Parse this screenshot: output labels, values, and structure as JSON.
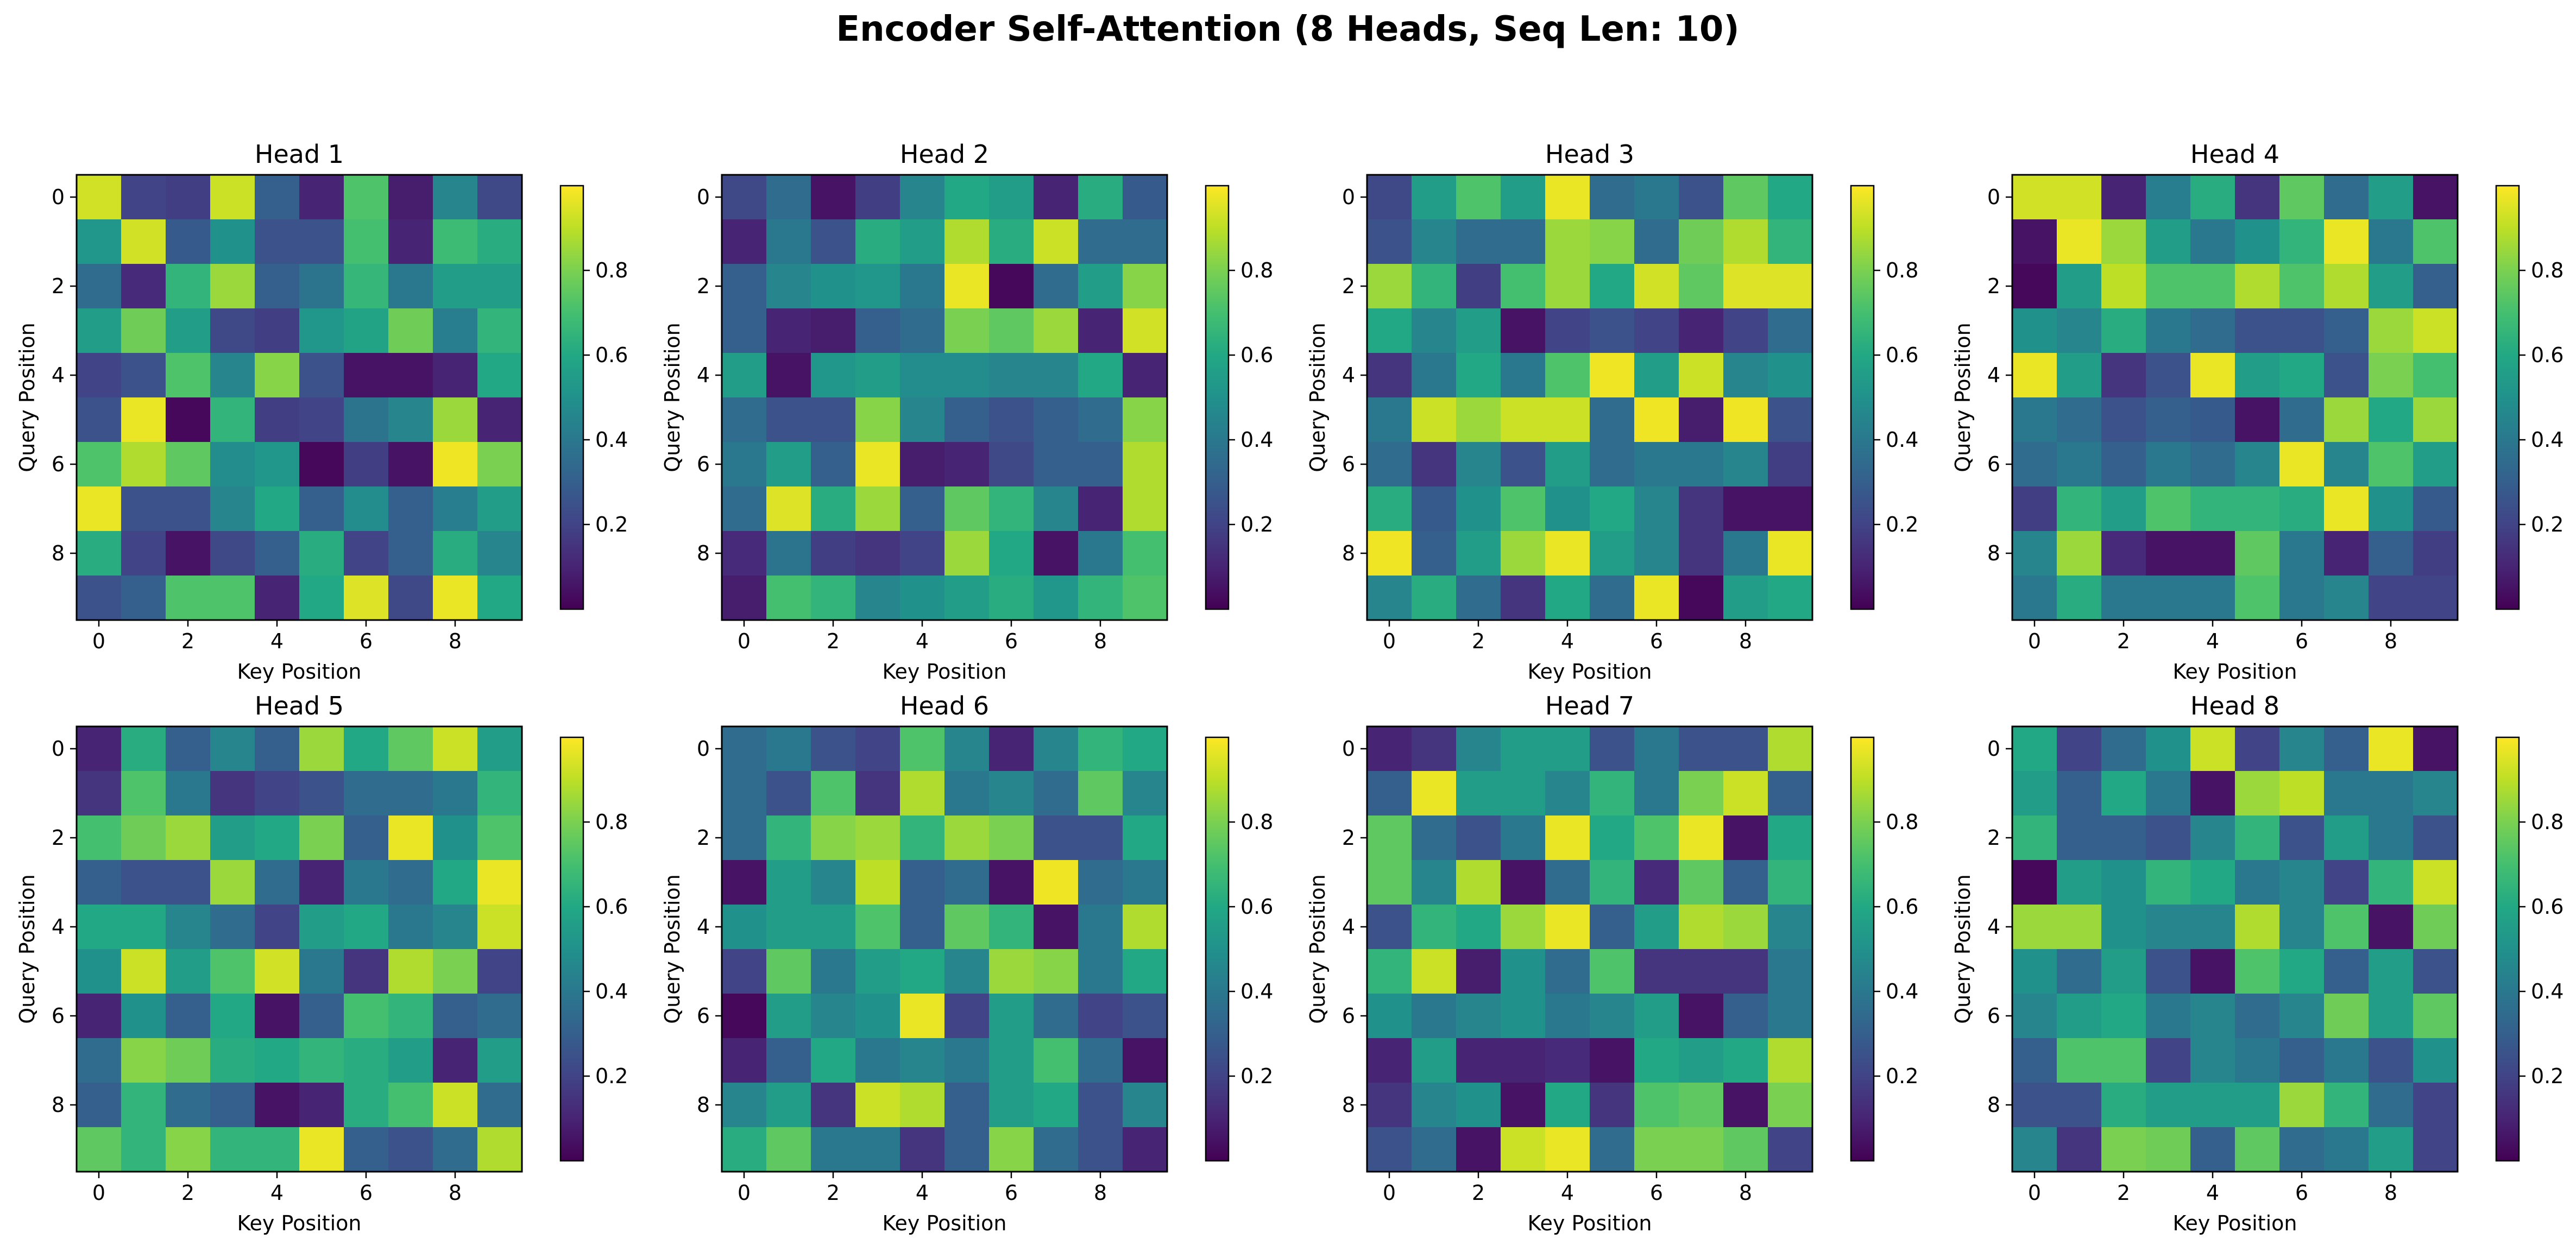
{
  "figure": {
    "title": "Encoder Self-Attention (8 Heads, Seq Len: 10)"
  },
  "colormap": "viridis",
  "chart_data": [
    {
      "type": "heatmap",
      "title": "Head 1",
      "xlabel": "Key Position",
      "ylabel": "Query Position",
      "x_ticks": [
        0,
        2,
        4,
        6,
        8
      ],
      "y_ticks": [
        0,
        2,
        4,
        6,
        8
      ],
      "colorbar_ticks": [
        0.2,
        0.4,
        0.6,
        0.8
      ],
      "colorbar_range": [
        0.0,
        1.0
      ],
      "values": [
        [
          0.93,
          0.2,
          0.18,
          0.92,
          0.3,
          0.1,
          0.72,
          0.08,
          0.45,
          0.22
        ],
        [
          0.52,
          0.93,
          0.28,
          0.5,
          0.25,
          0.25,
          0.7,
          0.1,
          0.68,
          0.62
        ],
        [
          0.35,
          0.12,
          0.65,
          0.85,
          0.3,
          0.38,
          0.66,
          0.4,
          0.55,
          0.55
        ],
        [
          0.55,
          0.78,
          0.55,
          0.22,
          0.18,
          0.52,
          0.58,
          0.78,
          0.42,
          0.65
        ],
        [
          0.2,
          0.25,
          0.72,
          0.45,
          0.82,
          0.25,
          0.05,
          0.05,
          0.1,
          0.6
        ],
        [
          0.25,
          0.97,
          0.02,
          0.65,
          0.18,
          0.2,
          0.38,
          0.45,
          0.85,
          0.1
        ],
        [
          0.72,
          0.88,
          0.75,
          0.48,
          0.52,
          0.02,
          0.18,
          0.05,
          0.98,
          0.8
        ],
        [
          0.97,
          0.25,
          0.25,
          0.45,
          0.6,
          0.3,
          0.48,
          0.3,
          0.42,
          0.55
        ],
        [
          0.62,
          0.2,
          0.05,
          0.22,
          0.3,
          0.62,
          0.2,
          0.3,
          0.62,
          0.45
        ],
        [
          0.25,
          0.3,
          0.72,
          0.72,
          0.1,
          0.6,
          0.95,
          0.22,
          0.97,
          0.6
        ]
      ]
    },
    {
      "type": "heatmap",
      "title": "Head 2",
      "xlabel": "Key Position",
      "ylabel": "Query Position",
      "x_ticks": [
        0,
        2,
        4,
        6,
        8
      ],
      "y_ticks": [
        0,
        2,
        4,
        6,
        8
      ],
      "colorbar_ticks": [
        0.2,
        0.4,
        0.6,
        0.8
      ],
      "colorbar_range": [
        0.0,
        1.0
      ],
      "values": [
        [
          0.22,
          0.35,
          0.05,
          0.18,
          0.45,
          0.6,
          0.55,
          0.1,
          0.62,
          0.28
        ],
        [
          0.1,
          0.4,
          0.25,
          0.62,
          0.55,
          0.88,
          0.62,
          0.92,
          0.35,
          0.35
        ],
        [
          0.3,
          0.45,
          0.5,
          0.52,
          0.4,
          0.97,
          0.02,
          0.35,
          0.55,
          0.82
        ],
        [
          0.3,
          0.1,
          0.08,
          0.3,
          0.35,
          0.8,
          0.75,
          0.85,
          0.1,
          0.93
        ],
        [
          0.55,
          0.05,
          0.52,
          0.55,
          0.48,
          0.48,
          0.45,
          0.45,
          0.6,
          0.1
        ],
        [
          0.35,
          0.25,
          0.25,
          0.82,
          0.45,
          0.3,
          0.25,
          0.3,
          0.35,
          0.82
        ],
        [
          0.4,
          0.55,
          0.3,
          0.97,
          0.08,
          0.1,
          0.22,
          0.3,
          0.3,
          0.88
        ],
        [
          0.35,
          0.95,
          0.62,
          0.85,
          0.3,
          0.75,
          0.65,
          0.45,
          0.1,
          0.88
        ],
        [
          0.12,
          0.38,
          0.18,
          0.15,
          0.2,
          0.85,
          0.6,
          0.05,
          0.4,
          0.7
        ],
        [
          0.08,
          0.7,
          0.65,
          0.45,
          0.5,
          0.55,
          0.62,
          0.52,
          0.65,
          0.72
        ]
      ]
    },
    {
      "type": "heatmap",
      "title": "Head 3",
      "xlabel": "Key Position",
      "ylabel": "Query Position",
      "x_ticks": [
        0,
        2,
        4,
        6,
        8
      ],
      "y_ticks": [
        0,
        2,
        4,
        6,
        8
      ],
      "colorbar_ticks": [
        0.2,
        0.4,
        0.6,
        0.8
      ],
      "colorbar_range": [
        0.0,
        1.0
      ],
      "values": [
        [
          0.22,
          0.55,
          0.72,
          0.55,
          0.97,
          0.35,
          0.4,
          0.25,
          0.75,
          0.6
        ],
        [
          0.25,
          0.45,
          0.35,
          0.35,
          0.85,
          0.82,
          0.35,
          0.78,
          0.88,
          0.65
        ],
        [
          0.85,
          0.65,
          0.18,
          0.7,
          0.85,
          0.6,
          0.93,
          0.75,
          0.95,
          0.95
        ],
        [
          0.6,
          0.45,
          0.55,
          0.05,
          0.2,
          0.25,
          0.2,
          0.1,
          0.2,
          0.35
        ],
        [
          0.15,
          0.4,
          0.6,
          0.4,
          0.72,
          0.98,
          0.55,
          0.92,
          0.45,
          0.5
        ],
        [
          0.4,
          0.92,
          0.85,
          0.92,
          0.92,
          0.35,
          0.98,
          0.08,
          0.98,
          0.25
        ],
        [
          0.35,
          0.15,
          0.45,
          0.25,
          0.55,
          0.35,
          0.4,
          0.4,
          0.45,
          0.18
        ],
        [
          0.62,
          0.28,
          0.5,
          0.72,
          0.5,
          0.6,
          0.45,
          0.15,
          0.05,
          0.05
        ],
        [
          0.98,
          0.3,
          0.55,
          0.85,
          0.97,
          0.55,
          0.45,
          0.15,
          0.4,
          0.97
        ],
        [
          0.45,
          0.62,
          0.35,
          0.15,
          0.6,
          0.35,
          0.97,
          0.02,
          0.55,
          0.6
        ]
      ]
    },
    {
      "type": "heatmap",
      "title": "Head 4",
      "xlabel": "Key Position",
      "ylabel": "Query Position",
      "x_ticks": [
        0,
        2,
        4,
        6,
        8
      ],
      "y_ticks": [
        0,
        2,
        4,
        6,
        8
      ],
      "colorbar_ticks": [
        0.2,
        0.4,
        0.6,
        0.8
      ],
      "colorbar_range": [
        0.0,
        1.0
      ],
      "values": [
        [
          0.93,
          0.93,
          0.1,
          0.42,
          0.62,
          0.15,
          0.75,
          0.35,
          0.55,
          0.05
        ],
        [
          0.05,
          0.97,
          0.85,
          0.55,
          0.4,
          0.5,
          0.65,
          0.97,
          0.4,
          0.72
        ],
        [
          0.02,
          0.55,
          0.9,
          0.72,
          0.72,
          0.88,
          0.72,
          0.88,
          0.55,
          0.3
        ],
        [
          0.5,
          0.45,
          0.62,
          0.4,
          0.35,
          0.25,
          0.25,
          0.3,
          0.85,
          0.92
        ],
        [
          0.97,
          0.55,
          0.15,
          0.25,
          0.97,
          0.55,
          0.6,
          0.25,
          0.8,
          0.7
        ],
        [
          0.4,
          0.35,
          0.25,
          0.3,
          0.28,
          0.05,
          0.35,
          0.85,
          0.6,
          0.85
        ],
        [
          0.35,
          0.4,
          0.3,
          0.4,
          0.35,
          0.45,
          0.97,
          0.45,
          0.72,
          0.55
        ],
        [
          0.18,
          0.65,
          0.55,
          0.72,
          0.65,
          0.65,
          0.62,
          0.97,
          0.5,
          0.28
        ],
        [
          0.45,
          0.85,
          0.12,
          0.05,
          0.05,
          0.75,
          0.4,
          0.1,
          0.3,
          0.18
        ],
        [
          0.4,
          0.62,
          0.4,
          0.4,
          0.4,
          0.72,
          0.4,
          0.45,
          0.2,
          0.2
        ]
      ]
    },
    {
      "type": "heatmap",
      "title": "Head 5",
      "xlabel": "Key Position",
      "ylabel": "Query Position",
      "x_ticks": [
        0,
        2,
        4,
        6,
        8
      ],
      "y_ticks": [
        0,
        2,
        4,
        6,
        8
      ],
      "colorbar_ticks": [
        0.2,
        0.4,
        0.6,
        0.8
      ],
      "colorbar_range": [
        0.0,
        1.0
      ],
      "values": [
        [
          0.1,
          0.62,
          0.3,
          0.45,
          0.3,
          0.85,
          0.6,
          0.75,
          0.92,
          0.55
        ],
        [
          0.15,
          0.72,
          0.4,
          0.15,
          0.2,
          0.25,
          0.35,
          0.35,
          0.4,
          0.65
        ],
        [
          0.7,
          0.78,
          0.85,
          0.55,
          0.6,
          0.8,
          0.3,
          0.97,
          0.5,
          0.72
        ],
        [
          0.3,
          0.25,
          0.25,
          0.85,
          0.35,
          0.1,
          0.4,
          0.35,
          0.6,
          0.97
        ],
        [
          0.6,
          0.6,
          0.45,
          0.35,
          0.2,
          0.55,
          0.6,
          0.4,
          0.45,
          0.92
        ],
        [
          0.5,
          0.92,
          0.55,
          0.72,
          0.93,
          0.4,
          0.15,
          0.88,
          0.8,
          0.2
        ],
        [
          0.1,
          0.5,
          0.3,
          0.6,
          0.05,
          0.3,
          0.7,
          0.65,
          0.3,
          0.35
        ],
        [
          0.35,
          0.82,
          0.78,
          0.62,
          0.6,
          0.65,
          0.62,
          0.55,
          0.1,
          0.55
        ],
        [
          0.3,
          0.65,
          0.35,
          0.3,
          0.05,
          0.1,
          0.62,
          0.7,
          0.92,
          0.35
        ],
        [
          0.75,
          0.65,
          0.82,
          0.65,
          0.65,
          0.97,
          0.3,
          0.25,
          0.35,
          0.88
        ]
      ]
    },
    {
      "type": "heatmap",
      "title": "Head 6",
      "xlabel": "Key Position",
      "ylabel": "Query Position",
      "x_ticks": [
        0,
        2,
        4,
        6,
        8
      ],
      "y_ticks": [
        0,
        2,
        4,
        6,
        8
      ],
      "colorbar_ticks": [
        0.2,
        0.4,
        0.6,
        0.8
      ],
      "colorbar_range": [
        0.0,
        1.0
      ],
      "values": [
        [
          0.35,
          0.4,
          0.25,
          0.2,
          0.72,
          0.45,
          0.1,
          0.45,
          0.65,
          0.6
        ],
        [
          0.35,
          0.25,
          0.72,
          0.15,
          0.88,
          0.4,
          0.45,
          0.35,
          0.75,
          0.45
        ],
        [
          0.35,
          0.65,
          0.82,
          0.85,
          0.65,
          0.85,
          0.8,
          0.25,
          0.25,
          0.6
        ],
        [
          0.05,
          0.55,
          0.45,
          0.9,
          0.3,
          0.35,
          0.05,
          0.98,
          0.35,
          0.4
        ],
        [
          0.5,
          0.55,
          0.55,
          0.72,
          0.3,
          0.75,
          0.65,
          0.05,
          0.4,
          0.88
        ],
        [
          0.2,
          0.75,
          0.4,
          0.55,
          0.6,
          0.45,
          0.85,
          0.82,
          0.4,
          0.6
        ],
        [
          0.02,
          0.55,
          0.45,
          0.5,
          0.97,
          0.2,
          0.55,
          0.35,
          0.2,
          0.25
        ],
        [
          0.1,
          0.3,
          0.6,
          0.4,
          0.45,
          0.4,
          0.55,
          0.7,
          0.35,
          0.05
        ],
        [
          0.45,
          0.55,
          0.15,
          0.92,
          0.88,
          0.3,
          0.55,
          0.6,
          0.25,
          0.45
        ],
        [
          0.62,
          0.75,
          0.4,
          0.4,
          0.15,
          0.3,
          0.82,
          0.35,
          0.25,
          0.1
        ]
      ]
    },
    {
      "type": "heatmap",
      "title": "Head 7",
      "xlabel": "Key Position",
      "ylabel": "Query Position",
      "x_ticks": [
        0,
        2,
        4,
        6,
        8
      ],
      "y_ticks": [
        0,
        2,
        4,
        6,
        8
      ],
      "colorbar_ticks": [
        0.2,
        0.4,
        0.6,
        0.8
      ],
      "colorbar_range": [
        0.0,
        1.0
      ],
      "values": [
        [
          0.1,
          0.15,
          0.45,
          0.55,
          0.55,
          0.25,
          0.4,
          0.25,
          0.25,
          0.88
        ],
        [
          0.3,
          0.97,
          0.55,
          0.55,
          0.45,
          0.65,
          0.4,
          0.8,
          0.92,
          0.3
        ],
        [
          0.75,
          0.35,
          0.25,
          0.4,
          0.97,
          0.6,
          0.72,
          0.97,
          0.05,
          0.6
        ],
        [
          0.75,
          0.45,
          0.88,
          0.05,
          0.35,
          0.65,
          0.12,
          0.75,
          0.3,
          0.65
        ],
        [
          0.25,
          0.65,
          0.6,
          0.85,
          0.97,
          0.3,
          0.55,
          0.88,
          0.85,
          0.45
        ],
        [
          0.65,
          0.92,
          0.08,
          0.5,
          0.35,
          0.72,
          0.15,
          0.15,
          0.15,
          0.4
        ],
        [
          0.5,
          0.4,
          0.45,
          0.5,
          0.4,
          0.45,
          0.55,
          0.05,
          0.3,
          0.4
        ],
        [
          0.1,
          0.55,
          0.1,
          0.1,
          0.12,
          0.05,
          0.6,
          0.55,
          0.6,
          0.88
        ],
        [
          0.15,
          0.45,
          0.5,
          0.05,
          0.6,
          0.15,
          0.72,
          0.75,
          0.05,
          0.8
        ],
        [
          0.25,
          0.35,
          0.05,
          0.92,
          0.97,
          0.35,
          0.8,
          0.8,
          0.75,
          0.2
        ]
      ]
    },
    {
      "type": "heatmap",
      "title": "Head 8",
      "xlabel": "Key Position",
      "ylabel": "Query Position",
      "x_ticks": [
        0,
        2,
        4,
        6,
        8
      ],
      "y_ticks": [
        0,
        2,
        4,
        6,
        8
      ],
      "colorbar_ticks": [
        0.2,
        0.4,
        0.6,
        0.8
      ],
      "colorbar_range": [
        0.0,
        1.0
      ],
      "values": [
        [
          0.6,
          0.2,
          0.35,
          0.5,
          0.92,
          0.2,
          0.45,
          0.3,
          0.97,
          0.05
        ],
        [
          0.55,
          0.3,
          0.6,
          0.4,
          0.05,
          0.85,
          0.9,
          0.4,
          0.4,
          0.45
        ],
        [
          0.65,
          0.3,
          0.3,
          0.25,
          0.45,
          0.65,
          0.25,
          0.55,
          0.4,
          0.25
        ],
        [
          0.02,
          0.55,
          0.5,
          0.65,
          0.6,
          0.4,
          0.45,
          0.2,
          0.65,
          0.92
        ],
        [
          0.85,
          0.85,
          0.5,
          0.45,
          0.45,
          0.88,
          0.45,
          0.72,
          0.05,
          0.78
        ],
        [
          0.5,
          0.35,
          0.55,
          0.25,
          0.05,
          0.72,
          0.6,
          0.3,
          0.55,
          0.25
        ],
        [
          0.45,
          0.55,
          0.6,
          0.4,
          0.45,
          0.35,
          0.45,
          0.78,
          0.55,
          0.75
        ],
        [
          0.3,
          0.72,
          0.72,
          0.2,
          0.45,
          0.4,
          0.3,
          0.4,
          0.25,
          0.5
        ],
        [
          0.25,
          0.25,
          0.62,
          0.55,
          0.55,
          0.55,
          0.85,
          0.65,
          0.35,
          0.2
        ],
        [
          0.45,
          0.15,
          0.8,
          0.78,
          0.3,
          0.75,
          0.35,
          0.4,
          0.55,
          0.2
        ]
      ]
    }
  ]
}
